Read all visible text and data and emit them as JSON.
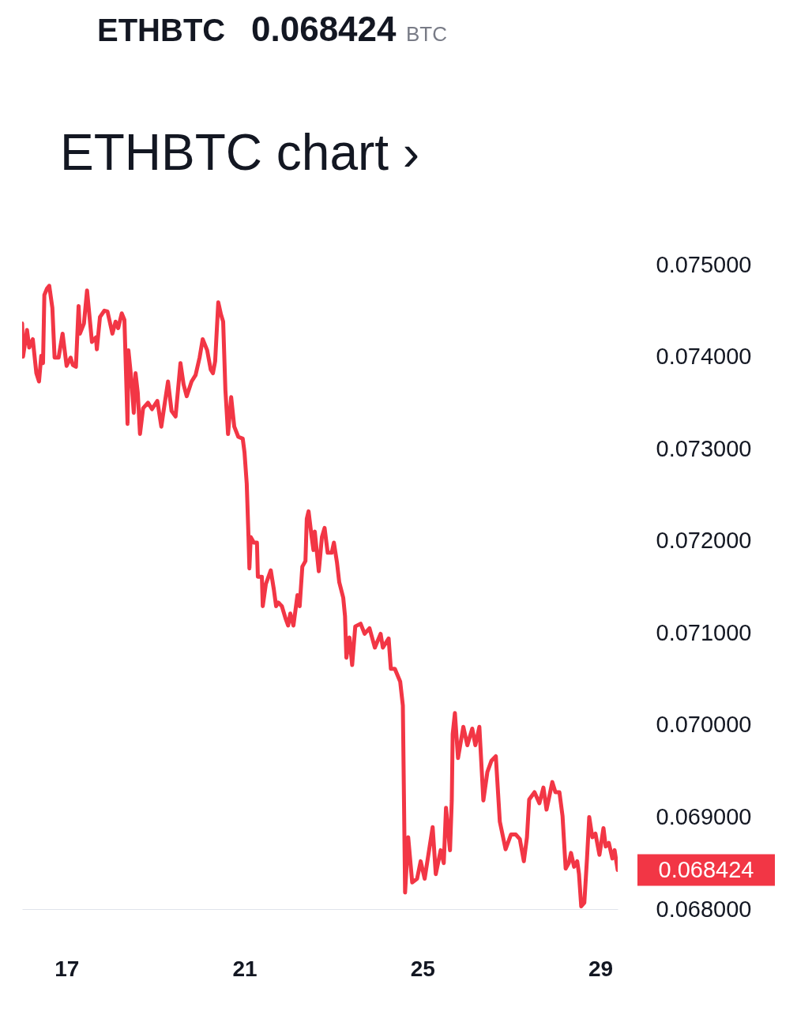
{
  "chart_data": {
    "type": "line",
    "title": "ETHBTC chart ›",
    "annotations": [
      "ETHBTC",
      "0.068424",
      "BTC",
      {
        "text": "0.068424",
        "x": 29.39,
        "y": 0.068424
      }
    ],
    "x": [
      16.0,
      16.02,
      16.11,
      16.16,
      16.24,
      16.32,
      16.38,
      16.43,
      16.47,
      16.5,
      16.56,
      16.61,
      16.68,
      16.73,
      16.82,
      16.91,
      17.0,
      17.09,
      17.14,
      17.21,
      17.27,
      17.3,
      17.39,
      17.46,
      17.57,
      17.66,
      17.68,
      17.75,
      17.85,
      17.92,
      18.03,
      18.1,
      18.16,
      18.24,
      18.3,
      18.37,
      18.39,
      18.46,
      18.51,
      18.55,
      18.6,
      18.65,
      18.72,
      18.83,
      18.92,
      19.04,
      19.13,
      19.19,
      19.28,
      19.36,
      19.45,
      19.56,
      19.63,
      19.7,
      19.81,
      19.9,
      19.99,
      20.06,
      20.16,
      20.24,
      20.29,
      20.34,
      20.41,
      20.47,
      20.52,
      20.57,
      20.63,
      20.7,
      20.77,
      20.86,
      20.96,
      21.0,
      21.05,
      21.09,
      21.11,
      21.14,
      21.21,
      21.28,
      21.3,
      21.39,
      21.41,
      21.48,
      21.59,
      21.66,
      21.71,
      21.76,
      21.84,
      21.92,
      21.98,
      22.03,
      22.1,
      22.19,
      22.24,
      22.3,
      22.37,
      22.4,
      22.44,
      22.51,
      22.55,
      22.58,
      22.67,
      22.74,
      22.8,
      22.87,
      22.96,
      23.01,
      23.08,
      23.13,
      23.22,
      23.26,
      23.29,
      23.36,
      23.42,
      23.49,
      23.61,
      23.7,
      23.81,
      23.93,
      24.06,
      24.11,
      24.24,
      24.29,
      24.38,
      24.5,
      24.56,
      24.61,
      24.68,
      24.77,
      24.88,
      24.96,
      25.05,
      25.23,
      25.3,
      25.41,
      25.48,
      25.53,
      25.62,
      25.66,
      25.68,
      25.73,
      25.8,
      25.92,
      26.01,
      26.12,
      26.19,
      26.28,
      26.37,
      26.46,
      26.55,
      26.65,
      26.74,
      26.87,
      26.99,
      27.1,
      27.19,
      27.28,
      27.35,
      27.4,
      27.52,
      27.63,
      27.72,
      27.79,
      27.92,
      27.99,
      28.08,
      28.15,
      28.22,
      28.29,
      28.34,
      28.41,
      28.48,
      28.52,
      28.57,
      28.64,
      28.7,
      28.75,
      28.82,
      28.89,
      28.98,
      29.07,
      29.12,
      29.19,
      29.27,
      29.32,
      29.39
    ],
    "series": [
      {
        "color": "#f23645",
        "values": [
          0.07436,
          0.074,
          0.07429,
          0.0741,
          0.07419,
          0.07382,
          0.07373,
          0.07401,
          0.07393,
          0.07467,
          0.07474,
          0.07477,
          0.07453,
          0.07399,
          0.07399,
          0.07425,
          0.0739,
          0.07399,
          0.07391,
          0.07389,
          0.07455,
          0.07425,
          0.07436,
          0.07472,
          0.07416,
          0.07421,
          0.07408,
          0.07443,
          0.0745,
          0.07449,
          0.07425,
          0.07438,
          0.07431,
          0.07447,
          0.0744,
          0.07327,
          0.07407,
          0.07373,
          0.07339,
          0.07382,
          0.07361,
          0.07316,
          0.07344,
          0.0735,
          0.07343,
          0.07352,
          0.07324,
          0.07344,
          0.07373,
          0.07341,
          0.07335,
          0.07393,
          0.0737,
          0.07357,
          0.07373,
          0.0738,
          0.07399,
          0.07419,
          0.07407,
          0.07386,
          0.07382,
          0.07395,
          0.07459,
          0.07446,
          0.07438,
          0.07364,
          0.07316,
          0.07356,
          0.07324,
          0.07313,
          0.07311,
          0.07296,
          0.07262,
          0.07204,
          0.0717,
          0.07204,
          0.07198,
          0.07198,
          0.07161,
          0.07161,
          0.07129,
          0.07153,
          0.07168,
          0.07147,
          0.07129,
          0.07133,
          0.07129,
          0.07116,
          0.07108,
          0.07121,
          0.07108,
          0.07141,
          0.07129,
          0.07172,
          0.07178,
          0.07224,
          0.07232,
          0.07204,
          0.0719,
          0.0721,
          0.07167,
          0.07204,
          0.07214,
          0.07187,
          0.07187,
          0.07198,
          0.07176,
          0.07155,
          0.07138,
          0.07118,
          0.07073,
          0.07095,
          0.07065,
          0.07107,
          0.0711,
          0.07099,
          0.07105,
          0.07084,
          0.07099,
          0.07084,
          0.07094,
          0.07061,
          0.07061,
          0.07047,
          0.07021,
          0.06818,
          0.06878,
          0.06829,
          0.06833,
          0.06852,
          0.06833,
          0.06889,
          0.06838,
          0.06864,
          0.0685,
          0.0691,
          0.06864,
          0.06918,
          0.0699,
          0.07013,
          0.06964,
          0.06998,
          0.06978,
          0.06996,
          0.06978,
          0.06998,
          0.06918,
          0.06949,
          0.06961,
          0.06966,
          0.06895,
          0.06865,
          0.06881,
          0.06881,
          0.06876,
          0.06852,
          0.06878,
          0.06919,
          0.06927,
          0.06915,
          0.06932,
          0.06908,
          0.06938,
          0.06927,
          0.06927,
          0.06901,
          0.06844,
          0.0685,
          0.06861,
          0.06846,
          0.06852,
          0.06838,
          0.06803,
          0.06807,
          0.06855,
          0.069,
          0.06878,
          0.06882,
          0.06859,
          0.06888,
          0.06868,
          0.06872,
          0.06855,
          0.06864,
          0.068424
        ]
      }
    ],
    "xlim": [
      16.0,
      29.39
    ],
    "xticks": [
      17,
      21,
      25,
      29
    ],
    "ylim": [
      0.068,
      0.075
    ],
    "yticks": [
      {
        "value": 0.075,
        "label": "0.075000"
      },
      {
        "value": 0.074,
        "label": "0.074000"
      },
      {
        "value": 0.073,
        "label": "0.073000"
      },
      {
        "value": 0.072,
        "label": "0.072000"
      },
      {
        "value": 0.071,
        "label": "0.071000"
      },
      {
        "value": 0.07,
        "label": "0.070000"
      },
      {
        "value": 0.069,
        "label": "0.069000"
      },
      {
        "value": 0.068,
        "label": "0.068000"
      }
    ],
    "grid": false
  }
}
